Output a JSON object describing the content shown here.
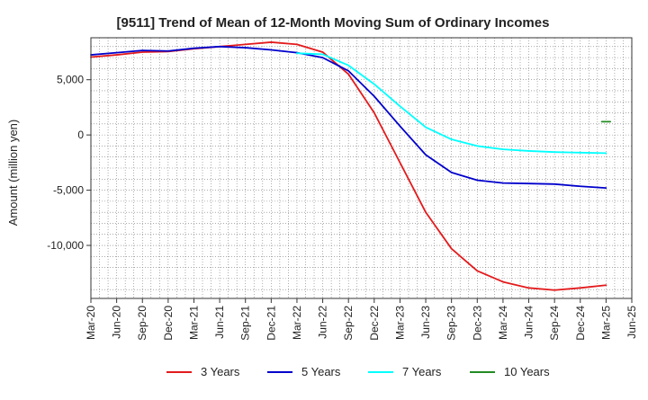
{
  "chart_data": {
    "type": "line",
    "title": "[9511]  Trend of Mean of 12-Month Moving Sum of Ordinary Incomes",
    "xlabel": "",
    "ylabel": "Amount (million yen)",
    "ylim": [
      -14800,
      8800
    ],
    "y_ticks": [
      {
        "value": 5000,
        "label": "5,000"
      },
      {
        "value": 0,
        "label": "0"
      },
      {
        "value": -5000,
        "label": "-5,000"
      },
      {
        "value": -10000,
        "label": "-10,000"
      }
    ],
    "x_ticks": [
      "Mar-20",
      "Jun-20",
      "Sep-20",
      "Dec-20",
      "Mar-21",
      "Jun-21",
      "Sep-21",
      "Dec-21",
      "Mar-22",
      "Jun-22",
      "Sep-22",
      "Dec-22",
      "Mar-23",
      "Jun-23",
      "Sep-23",
      "Dec-23",
      "Mar-24",
      "Jun-24",
      "Sep-24",
      "Dec-24",
      "Mar-25",
      "Jun-25"
    ],
    "x_index_note": "x = months since Mar-20 (0..63)",
    "series": [
      {
        "name": "3 Years",
        "color": "#e31a1c",
        "points": [
          [
            0,
            7050
          ],
          [
            3,
            7250
          ],
          [
            6,
            7500
          ],
          [
            9,
            7550
          ],
          [
            12,
            7800
          ],
          [
            15,
            8000
          ],
          [
            18,
            8200
          ],
          [
            21,
            8400
          ],
          [
            24,
            8200
          ],
          [
            27,
            7500
          ],
          [
            30,
            5500
          ],
          [
            33,
            2000
          ],
          [
            36,
            -2500
          ],
          [
            39,
            -7000
          ],
          [
            42,
            -10300
          ],
          [
            45,
            -12300
          ],
          [
            48,
            -13300
          ],
          [
            51,
            -13850
          ],
          [
            54,
            -14050
          ],
          [
            57,
            -13850
          ],
          [
            60,
            -13600
          ]
        ]
      },
      {
        "name": "5 Years",
        "color": "#0000cc",
        "points": [
          [
            0,
            7250
          ],
          [
            3,
            7450
          ],
          [
            6,
            7650
          ],
          [
            9,
            7600
          ],
          [
            12,
            7850
          ],
          [
            15,
            8000
          ],
          [
            18,
            7900
          ],
          [
            21,
            7700
          ],
          [
            24,
            7450
          ],
          [
            27,
            7000
          ],
          [
            30,
            5800
          ],
          [
            33,
            3500
          ],
          [
            36,
            800
          ],
          [
            39,
            -1800
          ],
          [
            42,
            -3400
          ],
          [
            45,
            -4100
          ],
          [
            48,
            -4350
          ],
          [
            51,
            -4400
          ],
          [
            54,
            -4450
          ],
          [
            57,
            -4650
          ],
          [
            60,
            -4800
          ]
        ]
      },
      {
        "name": "7 Years",
        "color": "#00ffff",
        "points": [
          [
            24,
            7400
          ],
          [
            27,
            7300
          ],
          [
            30,
            6300
          ],
          [
            33,
            4600
          ],
          [
            36,
            2600
          ],
          [
            39,
            700
          ],
          [
            42,
            -400
          ],
          [
            45,
            -1000
          ],
          [
            48,
            -1300
          ],
          [
            51,
            -1450
          ],
          [
            54,
            -1550
          ],
          [
            57,
            -1600
          ],
          [
            60,
            -1650
          ]
        ]
      },
      {
        "name": "10 Years",
        "color": "#228b22",
        "points": [
          [
            59.5,
            1200
          ],
          [
            60.5,
            1200
          ]
        ]
      }
    ],
    "legend_position": "bottom",
    "grid": true
  }
}
